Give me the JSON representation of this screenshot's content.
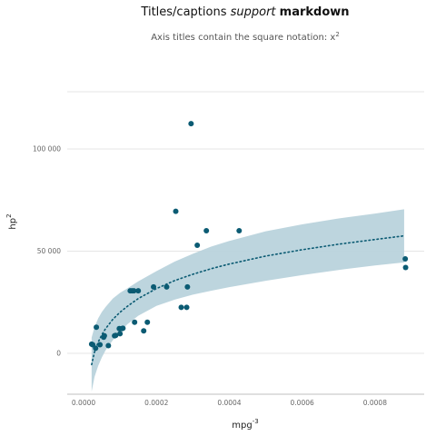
{
  "chart_data": {
    "type": "scatter",
    "title": {
      "plain": "Titles/captions ",
      "italic": "support",
      "bold": "markdown"
    },
    "subtitle": {
      "text": "Axis titles contain the square notation: x",
      "superscript": "2"
    },
    "xlabel": {
      "base": "mpg",
      "superscript": "-3"
    },
    "ylabel": {
      "base": "hp",
      "superscript": "2"
    },
    "xlim": [
      -4.5e-05,
      0.000935
    ],
    "ylim": [
      -20000,
      128000
    ],
    "x_ticks": [
      0,
      0.0002,
      0.0004,
      0.0006,
      0.0008
    ],
    "x_tick_labels": [
      "0.0000",
      "0.0002",
      "0.0004",
      "0.0006",
      "0.0008"
    ],
    "y_ticks": [
      0,
      50000,
      100000
    ],
    "y_tick_labels": [
      "0",
      "50 000",
      "100 000"
    ],
    "grid": true,
    "colors": {
      "points": "#0b5b73",
      "fit_line": "#0b5b73",
      "ribbon": "#b9d3dc",
      "grid": "#dddddd",
      "axis_frame": "#aaaaaa"
    },
    "points": [
      {
        "x": 2.2e-05,
        "y": 4500
      },
      {
        "x": 2.5e-05,
        "y": 4200
      },
      {
        "x": 3.3e-05,
        "y": 2500
      },
      {
        "x": 3.5e-05,
        "y": 12800
      },
      {
        "x": 4.5e-05,
        "y": 4200
      },
      {
        "x": 5.5e-05,
        "y": 7900
      },
      {
        "x": 5.7e-05,
        "y": 8600
      },
      {
        "x": 6.8e-05,
        "y": 3800
      },
      {
        "x": 8.5e-05,
        "y": 8600
      },
      {
        "x": 8.8e-05,
        "y": 8800
      },
      {
        "x": 9.8e-05,
        "y": 12100
      },
      {
        "x": 0.0001,
        "y": 9600
      },
      {
        "x": 0.000105,
        "y": 12100
      },
      {
        "x": 0.000108,
        "y": 12300
      },
      {
        "x": 0.000128,
        "y": 30600
      },
      {
        "x": 0.000133,
        "y": 30600
      },
      {
        "x": 0.000138,
        "y": 30600
      },
      {
        "x": 0.00014,
        "y": 15200
      },
      {
        "x": 0.00015,
        "y": 30600
      },
      {
        "x": 0.000165,
        "y": 11000
      },
      {
        "x": 0.000175,
        "y": 15200
      },
      {
        "x": 0.000192,
        "y": 32500
      },
      {
        "x": 0.000228,
        "y": 32500
      },
      {
        "x": 0.000253,
        "y": 69500
      },
      {
        "x": 0.000268,
        "y": 22500
      },
      {
        "x": 0.000283,
        "y": 22500
      },
      {
        "x": 0.000285,
        "y": 32500
      },
      {
        "x": 0.000295,
        "y": 112400
      },
      {
        "x": 0.000312,
        "y": 52900
      },
      {
        "x": 0.000337,
        "y": 60000
      },
      {
        "x": 0.000427,
        "y": 60000
      },
      {
        "x": 0.000883,
        "y": 46200
      },
      {
        "x": 0.000884,
        "y": 42000
      }
    ],
    "fit": {
      "x": [
        2.2e-05,
        3e-05,
        4e-05,
        5e-05,
        6e-05,
        8e-05,
        0.0001,
        0.00012,
        0.00015,
        0.0002,
        0.00025,
        0.0003,
        0.00035,
        0.0004,
        0.0005,
        0.0006,
        0.0007,
        0.0008,
        0.00088
      ],
      "y": [
        -5500,
        700,
        5500,
        9100,
        12000,
        16600,
        20100,
        23000,
        26800,
        31700,
        35600,
        38700,
        41400,
        43700,
        47600,
        50700,
        53400,
        55700,
        57500
      ],
      "lower": [
        -18700,
        -11500,
        -6100,
        -2000,
        1400,
        6400,
        10600,
        14200,
        18400,
        23200,
        26300,
        28700,
        30600,
        32400,
        35500,
        38300,
        40800,
        43000,
        44500
      ],
      "upper": [
        7700,
        12900,
        17100,
        20200,
        22600,
        26800,
        29600,
        31800,
        35200,
        40200,
        44900,
        48700,
        52200,
        55000,
        59700,
        63100,
        66000,
        68400,
        70500
      ]
    }
  }
}
